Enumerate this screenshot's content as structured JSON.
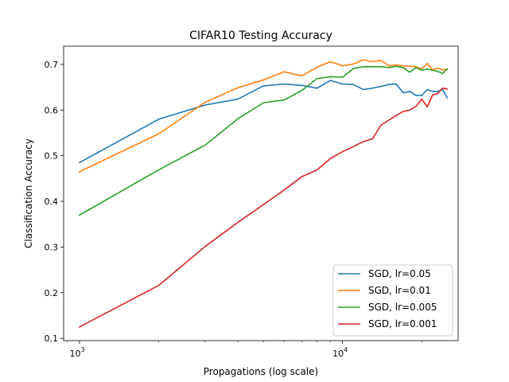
{
  "chart_data": {
    "type": "line",
    "title": "CIFAR10 Testing Accuracy",
    "xlabel": "Propagations (log scale)",
    "ylabel": "Classification Accuracy",
    "x_scale": "log",
    "xlim": [
      870,
      27500
    ],
    "ylim": [
      0.095,
      0.74
    ],
    "x_ticks": [
      {
        "value": 1000,
        "base": "10",
        "exp": "3"
      },
      {
        "value": 10000,
        "base": "10",
        "exp": "4"
      }
    ],
    "y_ticks": [
      {
        "value": 0.1,
        "label": "0.1"
      },
      {
        "value": 0.2,
        "label": "0.2"
      },
      {
        "value": 0.3,
        "label": "0.3"
      },
      {
        "value": 0.4,
        "label": "0.4"
      },
      {
        "value": 0.5,
        "label": "0.5"
      },
      {
        "value": 0.6,
        "label": "0.6"
      },
      {
        "value": 0.7,
        "label": "0.7"
      }
    ],
    "grid": false,
    "legend_position": "lower-right",
    "series": [
      {
        "name": "SGD, lr=0.05",
        "color": "#1f77b4",
        "points": [
          [
            1000,
            0.485
          ],
          [
            2000,
            0.58
          ],
          [
            3000,
            0.611
          ],
          [
            4000,
            0.624
          ],
          [
            5000,
            0.653
          ],
          [
            6000,
            0.657
          ],
          [
            7000,
            0.654
          ],
          [
            8000,
            0.648
          ],
          [
            9000,
            0.665
          ],
          [
            10000,
            0.657
          ],
          [
            11000,
            0.656
          ],
          [
            12000,
            0.645
          ],
          [
            13000,
            0.648
          ],
          [
            14000,
            0.652
          ],
          [
            15000,
            0.656
          ],
          [
            16000,
            0.657
          ],
          [
            17000,
            0.638
          ],
          [
            18000,
            0.641
          ],
          [
            19000,
            0.632
          ],
          [
            20000,
            0.632
          ],
          [
            21000,
            0.645
          ],
          [
            22000,
            0.641
          ],
          [
            23000,
            0.641
          ],
          [
            24000,
            0.645
          ],
          [
            25000,
            0.627
          ]
        ]
      },
      {
        "name": "SGD, lr=0.01",
        "color": "#ff7f0e",
        "points": [
          [
            1000,
            0.465
          ],
          [
            2000,
            0.548
          ],
          [
            3000,
            0.617
          ],
          [
            4000,
            0.649
          ],
          [
            5000,
            0.666
          ],
          [
            6000,
            0.684
          ],
          [
            7000,
            0.675
          ],
          [
            8000,
            0.694
          ],
          [
            9000,
            0.706
          ],
          [
            10000,
            0.697
          ],
          [
            11000,
            0.701
          ],
          [
            12000,
            0.71
          ],
          [
            13000,
            0.706
          ],
          [
            14000,
            0.709
          ],
          [
            15000,
            0.697
          ],
          [
            16000,
            0.699
          ],
          [
            17000,
            0.697
          ],
          [
            18000,
            0.696
          ],
          [
            19000,
            0.695
          ],
          [
            20000,
            0.69
          ],
          [
            21000,
            0.702
          ],
          [
            22000,
            0.688
          ],
          [
            23000,
            0.692
          ],
          [
            24000,
            0.688
          ],
          [
            25000,
            0.69
          ]
        ]
      },
      {
        "name": "SGD, lr=0.005",
        "color": "#2ca02c",
        "points": [
          [
            1000,
            0.37
          ],
          [
            2000,
            0.469
          ],
          [
            3000,
            0.523
          ],
          [
            4000,
            0.581
          ],
          [
            5000,
            0.616
          ],
          [
            6000,
            0.622
          ],
          [
            7000,
            0.643
          ],
          [
            8000,
            0.669
          ],
          [
            9000,
            0.673
          ],
          [
            10000,
            0.672
          ],
          [
            11000,
            0.691
          ],
          [
            12000,
            0.695
          ],
          [
            13000,
            0.695
          ],
          [
            14000,
            0.695
          ],
          [
            15000,
            0.693
          ],
          [
            16000,
            0.696
          ],
          [
            17000,
            0.693
          ],
          [
            18000,
            0.683
          ],
          [
            19000,
            0.693
          ],
          [
            20000,
            0.687
          ],
          [
            21000,
            0.69
          ],
          [
            22000,
            0.687
          ],
          [
            23000,
            0.685
          ],
          [
            24000,
            0.68
          ],
          [
            25000,
            0.69
          ]
        ]
      },
      {
        "name": "SGD, lr=0.001",
        "color": "#d62728",
        "points": [
          [
            1000,
            0.125
          ],
          [
            2000,
            0.216
          ],
          [
            3000,
            0.301
          ],
          [
            4000,
            0.354
          ],
          [
            5000,
            0.393
          ],
          [
            6000,
            0.425
          ],
          [
            7000,
            0.454
          ],
          [
            8000,
            0.469
          ],
          [
            9000,
            0.494
          ],
          [
            10000,
            0.509
          ],
          [
            11000,
            0.52
          ],
          [
            12000,
            0.531
          ],
          [
            13000,
            0.537
          ],
          [
            14000,
            0.567
          ],
          [
            15000,
            0.578
          ],
          [
            16000,
            0.588
          ],
          [
            17000,
            0.597
          ],
          [
            18000,
            0.6
          ],
          [
            19000,
            0.608
          ],
          [
            20000,
            0.624
          ],
          [
            21000,
            0.607
          ],
          [
            22000,
            0.633
          ],
          [
            23000,
            0.636
          ],
          [
            24000,
            0.648
          ],
          [
            25000,
            0.646
          ]
        ]
      }
    ]
  }
}
